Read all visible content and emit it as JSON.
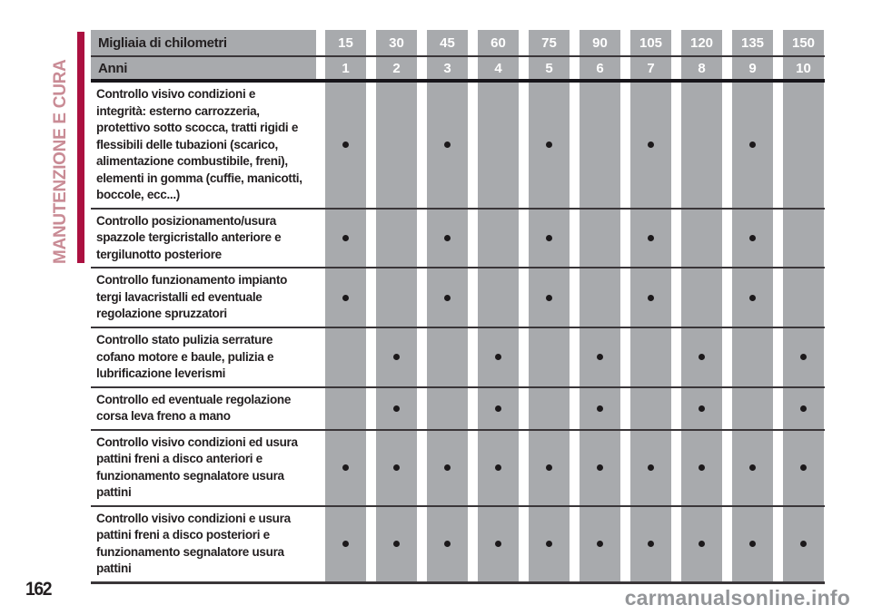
{
  "page": {
    "sidebar_label": "MANUTENZIONE E CURA",
    "page_number": "162",
    "watermark": "carmanualsonline.info"
  },
  "colors": {
    "accent_bar": "#ab1040",
    "sidebar_text": "#c98b95",
    "cell_gray": "#a8aaad",
    "body_text": "#231f20",
    "header_number_text": "#ffffff",
    "watermark_gray": "#939598"
  },
  "table": {
    "header_rows": [
      {
        "label": "Migliaia di chilometri",
        "values": [
          "15",
          "30",
          "45",
          "60",
          "75",
          "90",
          "105",
          "120",
          "135",
          "150"
        ]
      },
      {
        "label": "Anni",
        "values": [
          "1",
          "2",
          "3",
          "4",
          "5",
          "6",
          "7",
          "8",
          "9",
          "10"
        ]
      }
    ],
    "rows": [
      {
        "label": "Controllo visivo condizioni e integrità: esterno carrozzeria, protettivo sotto scocca, tratti rigidi e flessibili delle tubazioni (scarico, alimentazione combustibile, freni), elementi in gomma (cuffie, manicotti, boccole, ecc...)",
        "dots": [
          1,
          0,
          1,
          0,
          1,
          0,
          1,
          0,
          1,
          0
        ]
      },
      {
        "label": "Controllo posizionamento/usura spazzole tergicristallo anteriore e tergilunotto posteriore",
        "dots": [
          1,
          0,
          1,
          0,
          1,
          0,
          1,
          0,
          1,
          0
        ]
      },
      {
        "label": "Controllo funzionamento impianto tergi lavacristalli ed eventuale regolazione spruzzatori",
        "dots": [
          1,
          0,
          1,
          0,
          1,
          0,
          1,
          0,
          1,
          0
        ]
      },
      {
        "label": "Controllo stato pulizia serrature cofano motore e baule, pulizia e lubrificazione leverismi",
        "dots": [
          0,
          1,
          0,
          1,
          0,
          1,
          0,
          1,
          0,
          1
        ]
      },
      {
        "label": "Controllo ed eventuale regolazione corsa leva freno a mano",
        "dots": [
          0,
          1,
          0,
          1,
          0,
          1,
          0,
          1,
          0,
          1
        ]
      },
      {
        "label": "Controllo visivo condizioni ed usura pattini freni a disco anteriori e funzionamento segnalatore usura pattini",
        "dots": [
          1,
          1,
          1,
          1,
          1,
          1,
          1,
          1,
          1,
          1
        ]
      },
      {
        "label": "Controllo visivo condizioni e usura pattini freni a disco posteriori e funzionamento segnalatore usura pattini",
        "dots": [
          1,
          1,
          1,
          1,
          1,
          1,
          1,
          1,
          1,
          1
        ]
      }
    ]
  }
}
